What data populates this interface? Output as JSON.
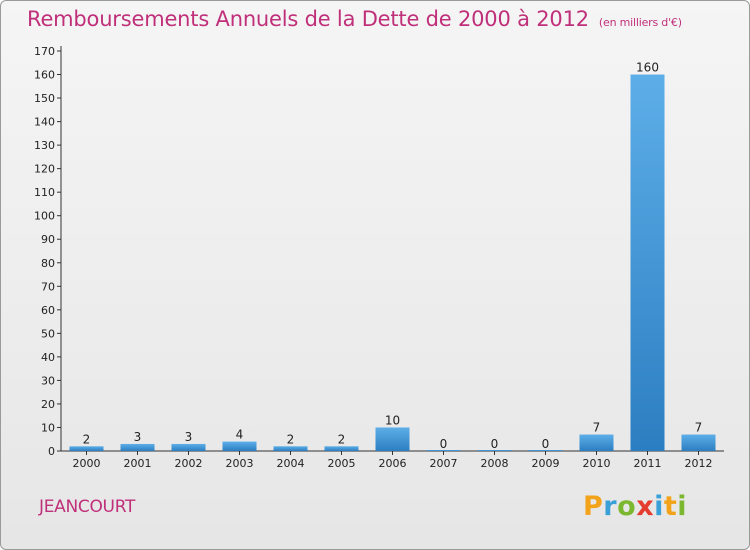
{
  "header": {
    "title": "Remboursements Annuels de la Dette de 2000 à 2012",
    "unit": "(en milliers d'€)"
  },
  "footer": {
    "place": "JEANCOURT",
    "brand_letters": [
      "P",
      "r",
      "o",
      "x",
      "i",
      "t",
      "i"
    ]
  },
  "colors": {
    "title": "#c0307a",
    "bar_light": "#5daee8",
    "bar_dark": "#2b7ec1"
  },
  "chart_data": {
    "type": "bar",
    "title": "Remboursements Annuels de la Dette de 2000 à 2012",
    "subtitle": "(en milliers d'€)",
    "xlabel": "",
    "ylabel": "",
    "categories": [
      "2000",
      "2001",
      "2002",
      "2003",
      "2004",
      "2005",
      "2006",
      "2007",
      "2008",
      "2009",
      "2010",
      "2011",
      "2012"
    ],
    "values": [
      2,
      3,
      3,
      4,
      2,
      2,
      10,
      0,
      0,
      0,
      7,
      160,
      7
    ],
    "ylim": [
      0,
      170
    ],
    "yticks": [
      0,
      10,
      20,
      30,
      40,
      50,
      60,
      70,
      80,
      90,
      100,
      110,
      120,
      130,
      140,
      150,
      160,
      170
    ],
    "grid": false,
    "legend": "none",
    "data_labels": true
  }
}
